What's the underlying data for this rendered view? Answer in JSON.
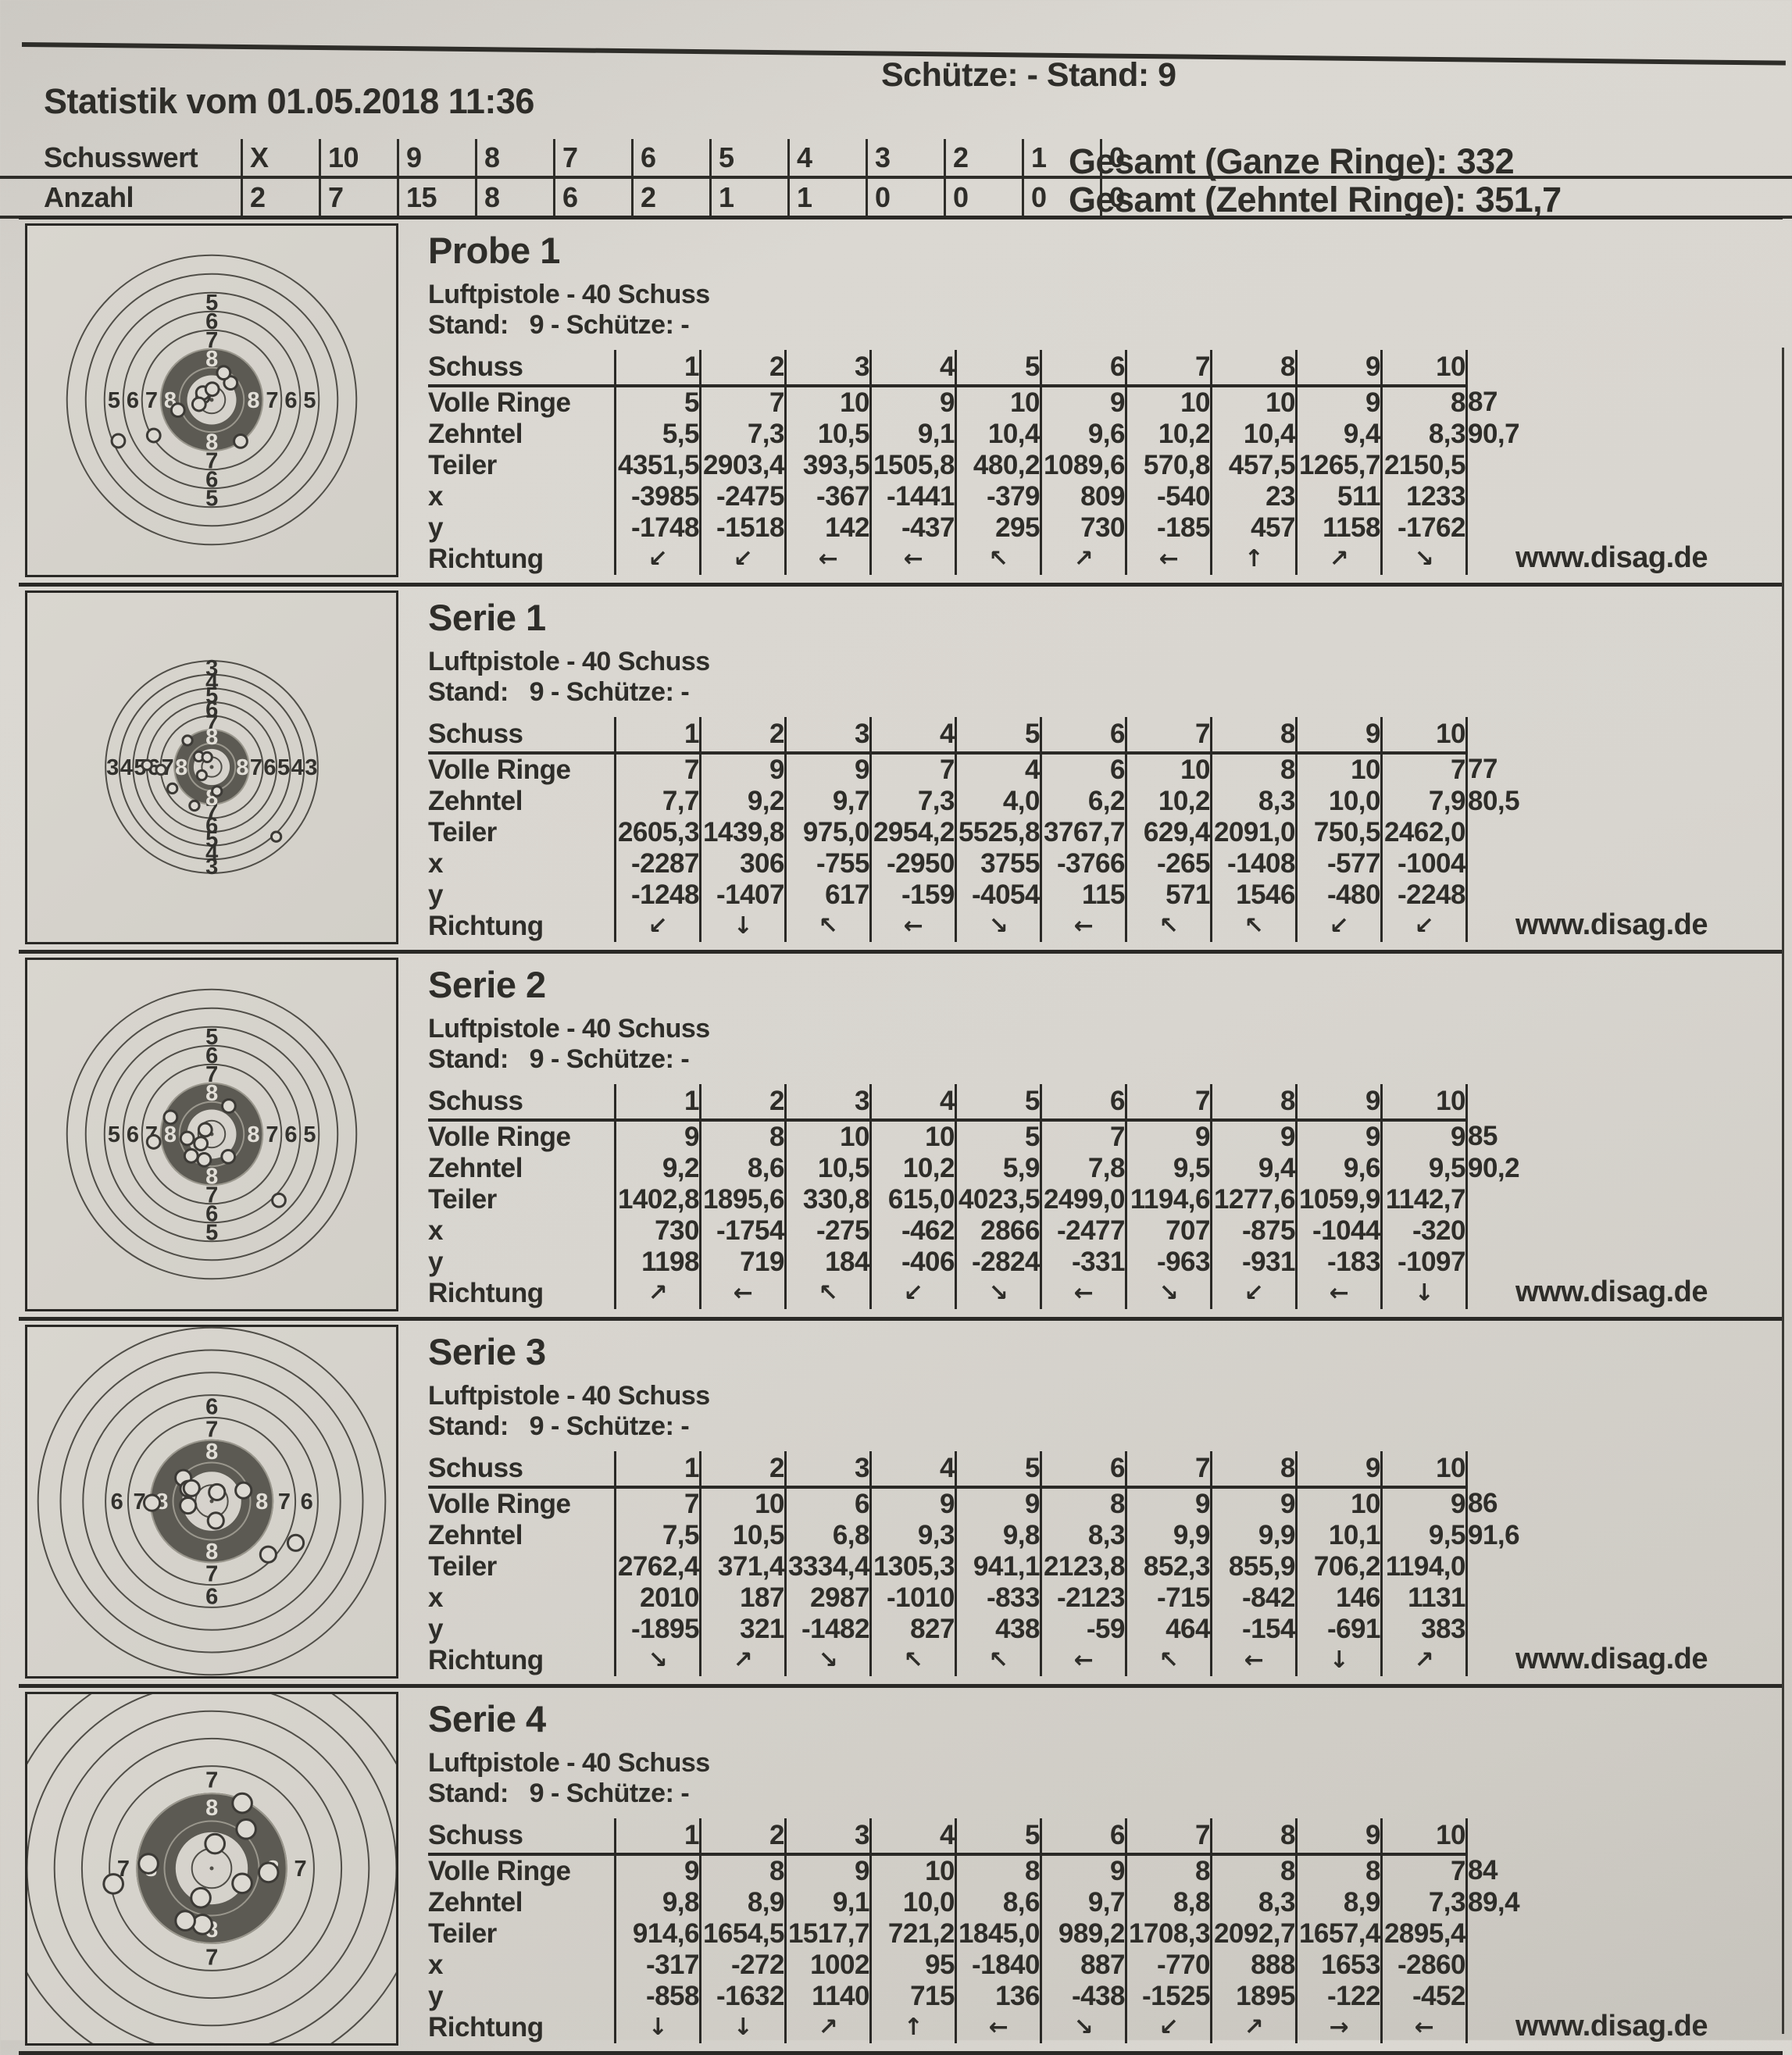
{
  "header": {
    "shooter_stand": "Schütze: -  Stand: 9",
    "title": "Statistik vom 01.05.2018 11:36"
  },
  "summary": {
    "row1_label": "Schusswert",
    "row2_label": "Anzahl",
    "values": [
      "X",
      "10",
      "9",
      "8",
      "7",
      "6",
      "5",
      "4",
      "3",
      "2",
      "1",
      "0"
    ],
    "counts": [
      "2",
      "7",
      "15",
      "8",
      "6",
      "2",
      "1",
      "1",
      "0",
      "0",
      "0",
      "0"
    ],
    "total_full_label": "Gesamt (Ganze Ringe):",
    "total_full_value": "332",
    "total_tenth_label": "Gesamt (Zehntel Ringe):",
    "total_tenth_value": "351,7"
  },
  "website": "www.disag.de",
  "table_row_labels": {
    "schuss": "Schuss",
    "volle": "Volle Ringe",
    "zehntel": "Zehntel",
    "teiler": "Teiler",
    "x": "x",
    "y": "y",
    "richtung": "Richtung"
  },
  "sections": [
    {
      "title": "Probe 1",
      "subtitle1": "Luftpistole - 40 Schuss",
      "subtitle2": "Stand:   9 - Schütze: -",
      "schuss": [
        "1",
        "2",
        "3",
        "4",
        "5",
        "6",
        "7",
        "8",
        "9",
        "10"
      ],
      "volle": [
        "5",
        "7",
        "10",
        "9",
        "10",
        "9",
        "10",
        "10",
        "9",
        "8"
      ],
      "volle_sum": "87",
      "zehntel": [
        "5,5",
        "7,3",
        "10,5",
        "9,1",
        "10,4",
        "9,6",
        "10,2",
        "10,4",
        "9,4",
        "8,3"
      ],
      "zehntel_sum": "90,7",
      "teiler": [
        "4351,5",
        "2903,4",
        "393,5",
        "1505,8",
        "480,2",
        "1089,6",
        "570,8",
        "457,5",
        "1265,7",
        "2150,5"
      ],
      "x": [
        -3985,
        -2475,
        -367,
        -1441,
        -379,
        809,
        -540,
        23,
        511,
        1233
      ],
      "y": [
        -1748,
        -1518,
        142,
        -437,
        295,
        730,
        -185,
        457,
        1158,
        -1762
      ],
      "richtung": [
        "↙",
        "↙",
        "←",
        "←",
        "↖",
        "↗",
        "←",
        "↑",
        "↗",
        "↘"
      ],
      "target": {
        "scale": 3.0,
        "labels": [
          5,
          6,
          7,
          8
        ]
      }
    },
    {
      "title": "Serie 1",
      "subtitle1": "Luftpistole - 40 Schuss",
      "subtitle2": "Stand:   9 - Schütze: -",
      "schuss": [
        "1",
        "2",
        "3",
        "4",
        "5",
        "6",
        "7",
        "8",
        "9",
        "10"
      ],
      "volle": [
        "7",
        "9",
        "9",
        "7",
        "4",
        "6",
        "10",
        "8",
        "10",
        "7"
      ],
      "volle_sum": "77",
      "zehntel": [
        "7,7",
        "9,2",
        "9,7",
        "7,3",
        "4,0",
        "6,2",
        "10,2",
        "8,3",
        "10,0",
        "7,9"
      ],
      "zehntel_sum": "80,5",
      "teiler": [
        "2605,3",
        "1439,8",
        "975,0",
        "2954,2",
        "5525,8",
        "3767,7",
        "629,4",
        "2091,0",
        "750,5",
        "2462,0"
      ],
      "x": [
        -2287,
        306,
        -755,
        -2950,
        3755,
        -3766,
        -265,
        -1408,
        -577,
        -1004
      ],
      "y": [
        -1248,
        -1407,
        617,
        -159,
        -4054,
        115,
        571,
        1546,
        -480,
        -2248
      ],
      "richtung": [
        "↙",
        "↓",
        "↖",
        "←",
        "↘",
        "←",
        "↖",
        "↖",
        "↙",
        "↙"
      ],
      "target": {
        "scale": 2.2,
        "labels": [
          3,
          4,
          5,
          6,
          7,
          8
        ]
      }
    },
    {
      "title": "Serie 2",
      "subtitle1": "Luftpistole - 40 Schuss",
      "subtitle2": "Stand:   9 - Schütze: -",
      "schuss": [
        "1",
        "2",
        "3",
        "4",
        "5",
        "6",
        "7",
        "8",
        "9",
        "10"
      ],
      "volle": [
        "9",
        "8",
        "10",
        "10",
        "5",
        "7",
        "9",
        "9",
        "9",
        "9"
      ],
      "volle_sum": "85",
      "zehntel": [
        "9,2",
        "8,6",
        "10,5",
        "10,2",
        "5,9",
        "7,8",
        "9,5",
        "9,4",
        "9,6",
        "9,5"
      ],
      "zehntel_sum": "90,2",
      "teiler": [
        "1402,8",
        "1895,6",
        "330,8",
        "615,0",
        "4023,5",
        "2499,0",
        "1194,6",
        "1277,6",
        "1059,9",
        "1142,7"
      ],
      "x": [
        730,
        -1754,
        -275,
        -462,
        2866,
        -2477,
        707,
        -875,
        -1044,
        -320
      ],
      "y": [
        1198,
        719,
        184,
        -406,
        -2824,
        -331,
        -963,
        -931,
        -183,
        -1097
      ],
      "richtung": [
        "↗",
        "←",
        "↖",
        "↙",
        "↘",
        "←",
        "↘",
        "↙",
        "←",
        "↓"
      ],
      "target": {
        "scale": 3.0,
        "labels": [
          5,
          6,
          7,
          8
        ]
      }
    },
    {
      "title": "Serie 3",
      "subtitle1": "Luftpistole - 40 Schuss",
      "subtitle2": "Stand:   9 - Schütze: -",
      "schuss": [
        "1",
        "2",
        "3",
        "4",
        "5",
        "6",
        "7",
        "8",
        "9",
        "10"
      ],
      "volle": [
        "7",
        "10",
        "6",
        "9",
        "9",
        "8",
        "9",
        "9",
        "10",
        "9"
      ],
      "volle_sum": "86",
      "zehntel": [
        "7,5",
        "10,5",
        "6,8",
        "9,3",
        "9,8",
        "8,3",
        "9,9",
        "9,9",
        "10,1",
        "9,5"
      ],
      "zehntel_sum": "91,6",
      "teiler": [
        "2762,4",
        "371,4",
        "3334,4",
        "1305,3",
        "941,1",
        "2123,8",
        "852,3",
        "855,9",
        "706,2",
        "1194,0"
      ],
      "x": [
        2010,
        187,
        2987,
        -1010,
        -833,
        -2123,
        -715,
        -842,
        146,
        1131
      ],
      "y": [
        -1895,
        321,
        -1482,
        827,
        438,
        -59,
        464,
        -154,
        -691,
        383
      ],
      "richtung": [
        "↘",
        "↗",
        "↘",
        "↖",
        "↖",
        "←",
        "↖",
        "←",
        "↓",
        "↗"
      ],
      "target": {
        "scale": 3.6,
        "labels": [
          6,
          7,
          8
        ]
      }
    },
    {
      "title": "Serie 4",
      "subtitle1": "Luftpistole - 40 Schuss",
      "subtitle2": "Stand:   9 - Schütze: -",
      "schuss": [
        "1",
        "2",
        "3",
        "4",
        "5",
        "6",
        "7",
        "8",
        "9",
        "10"
      ],
      "volle": [
        "9",
        "8",
        "9",
        "10",
        "8",
        "9",
        "8",
        "8",
        "8",
        "7"
      ],
      "volle_sum": "84",
      "zehntel": [
        "9,8",
        "8,9",
        "9,1",
        "10,0",
        "8,6",
        "9,7",
        "8,8",
        "8,3",
        "8,9",
        "7,3"
      ],
      "zehntel_sum": "89,4",
      "teiler": [
        "914,6",
        "1654,5",
        "1517,7",
        "721,2",
        "1845,0",
        "989,2",
        "1708,3",
        "2092,7",
        "1657,4",
        "2895,4"
      ],
      "x": [
        -317,
        -272,
        1002,
        95,
        -1840,
        887,
        -770,
        888,
        1653,
        -2860
      ],
      "y": [
        -858,
        -1632,
        1140,
        715,
        136,
        -438,
        -1525,
        1895,
        -122,
        -452
      ],
      "richtung": [
        "↓",
        "↓",
        "↗",
        "↑",
        "←",
        "↘",
        "↙",
        "↗",
        "→",
        "←"
      ],
      "target": {
        "scale": 4.4,
        "labels": [
          7,
          8
        ]
      }
    }
  ]
}
